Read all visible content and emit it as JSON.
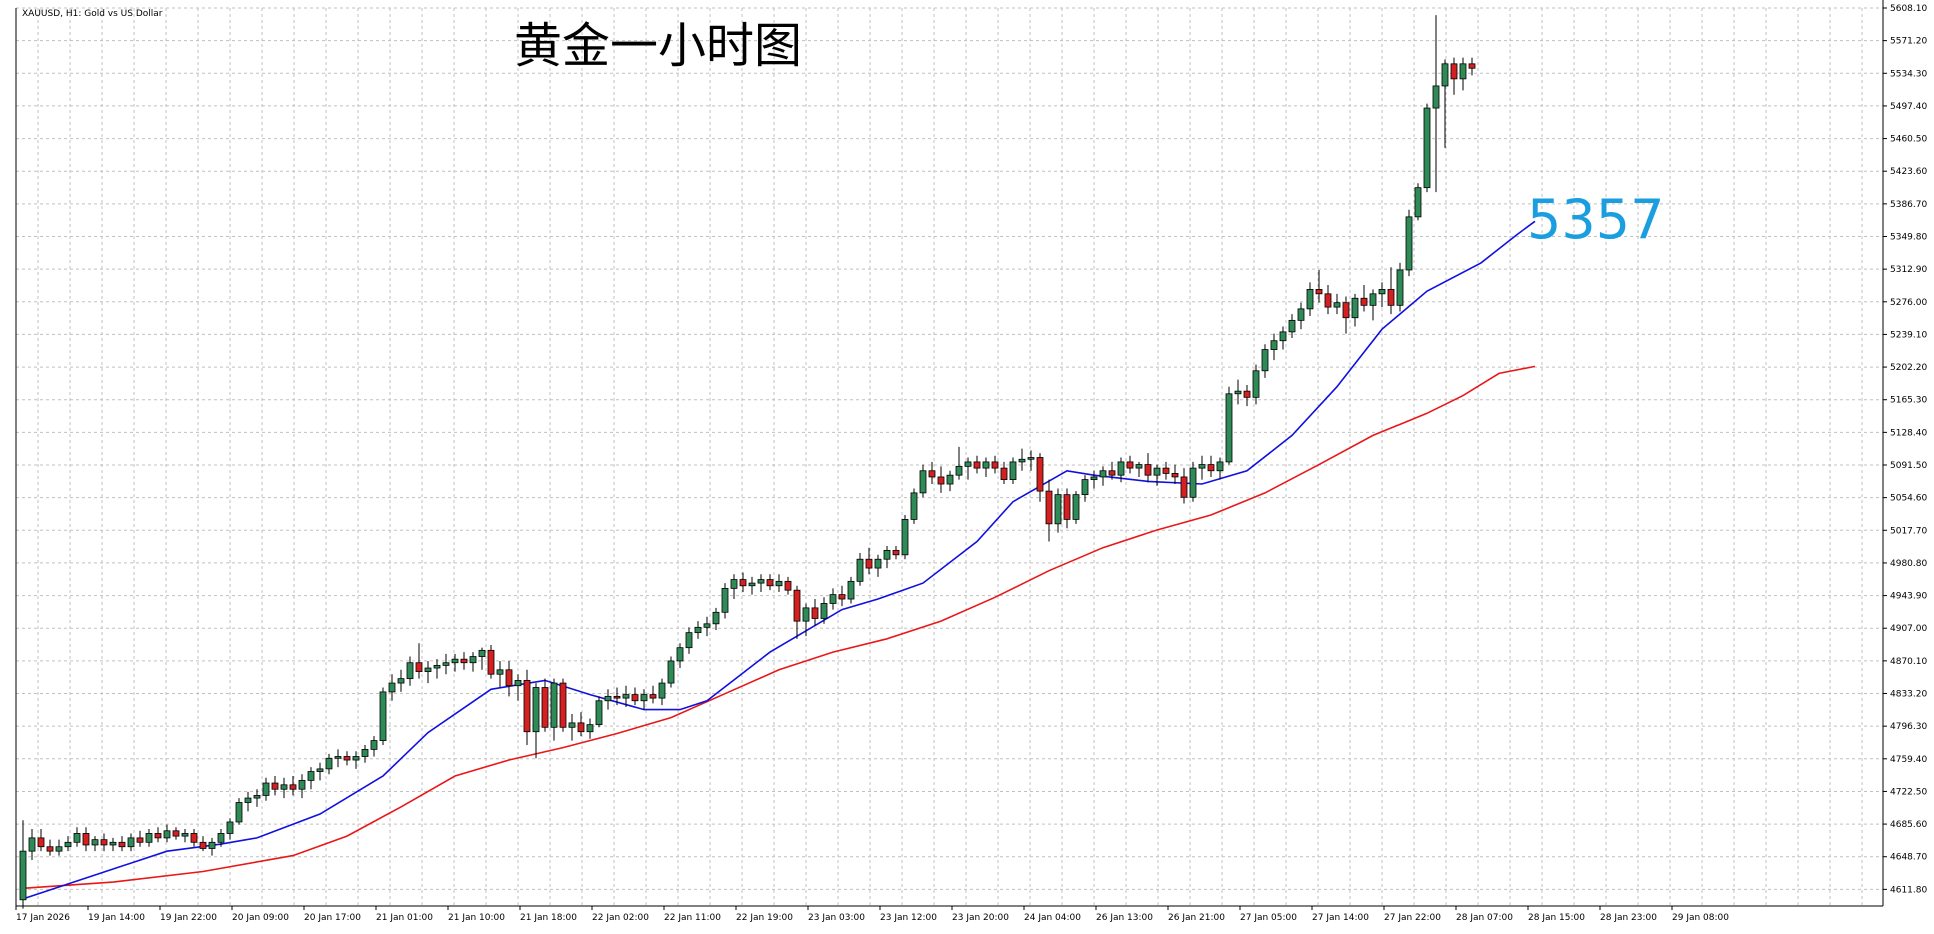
{
  "header": {
    "symbol_info": "XAUUSD, H1:  Gold vs US Dollar"
  },
  "chart_data": {
    "type": "candlestick",
    "title": "黄金一小时图",
    "annotation": {
      "text": "5357",
      "color": "#1a9ee0"
    },
    "colors": {
      "bull_body": "#2e8b57",
      "bear_body": "#d42020",
      "wick": "#000000",
      "ma_fast": "#1010e0",
      "ma_slow": "#e81818",
      "grid": "#c0c0c0",
      "axis": "#000000"
    },
    "ylim": [
      4593.0,
      5608.1
    ],
    "y_ticks": [
      "5608.10",
      "5571.20",
      "5534.30",
      "5497.40",
      "5460.50",
      "5423.60",
      "5386.70",
      "5349.80",
      "5312.90",
      "5276.00",
      "5239.10",
      "5202.20",
      "5165.30",
      "5128.40",
      "5091.50",
      "5054.60",
      "5017.70",
      "4980.80",
      "4943.90",
      "4907.00",
      "4870.10",
      "4833.20",
      "4796.30",
      "4759.40",
      "4722.50",
      "4685.60",
      "4648.70",
      "4611.80"
    ],
    "x_labels": [
      "17 Jan 2026",
      "19 Jan 14:00",
      "19 Jan 22:00",
      "20 Jan 09:00",
      "20 Jan 17:00",
      "21 Jan 01:00",
      "21 Jan 10:00",
      "21 Jan 18:00",
      "22 Jan 02:00",
      "22 Jan 11:00",
      "22 Jan 19:00",
      "23 Jan 03:00",
      "23 Jan 12:00",
      "23 Jan 20:00",
      "24 Jan 04:00",
      "26 Jan 13:00",
      "26 Jan 21:00",
      "27 Jan 05:00",
      "27 Jan 14:00",
      "27 Jan 22:00",
      "28 Jan 07:00",
      "28 Jan 15:00",
      "28 Jan 23:00",
      "29 Jan 08:00"
    ],
    "x_label_index_step": 8,
    "grid": true,
    "series": [
      {
        "name": "",
        "kind": "ma_fast"
      },
      {
        "name": "",
        "kind": "ma_slow"
      }
    ],
    "candles": [
      [
        4600,
        4690,
        4590,
        4655
      ],
      [
        4655,
        4680,
        4645,
        4670
      ],
      [
        4670,
        4680,
        4655,
        4660
      ],
      [
        4660,
        4668,
        4650,
        4655
      ],
      [
        4655,
        4668,
        4650,
        4660
      ],
      [
        4660,
        4672,
        4655,
        4665
      ],
      [
        4665,
        4682,
        4660,
        4675
      ],
      [
        4675,
        4682,
        4655,
        4662
      ],
      [
        4662,
        4672,
        4655,
        4668
      ],
      [
        4668,
        4675,
        4655,
        4662
      ],
      [
        4662,
        4670,
        4655,
        4665
      ],
      [
        4665,
        4672,
        4655,
        4660
      ],
      [
        4660,
        4675,
        4655,
        4670
      ],
      [
        4670,
        4678,
        4660,
        4665
      ],
      [
        4665,
        4680,
        4660,
        4675
      ],
      [
        4675,
        4682,
        4665,
        4670
      ],
      [
        4670,
        4685,
        4665,
        4678
      ],
      [
        4678,
        4682,
        4668,
        4672
      ],
      [
        4672,
        4680,
        4665,
        4675
      ],
      [
        4675,
        4680,
        4660,
        4665
      ],
      [
        4665,
        4672,
        4655,
        4658
      ],
      [
        4658,
        4670,
        4650,
        4665
      ],
      [
        4665,
        4680,
        4660,
        4675
      ],
      [
        4675,
        4692,
        4668,
        4688
      ],
      [
        4688,
        4715,
        4685,
        4710
      ],
      [
        4710,
        4722,
        4700,
        4715
      ],
      [
        4715,
        4725,
        4705,
        4718
      ],
      [
        4718,
        4738,
        4712,
        4732
      ],
      [
        4732,
        4740,
        4718,
        4725
      ],
      [
        4725,
        4738,
        4715,
        4730
      ],
      [
        4730,
        4740,
        4718,
        4725
      ],
      [
        4725,
        4742,
        4715,
        4735
      ],
      [
        4735,
        4750,
        4725,
        4745
      ],
      [
        4745,
        4755,
        4735,
        4748
      ],
      [
        4748,
        4765,
        4742,
        4760
      ],
      [
        4760,
        4770,
        4750,
        4762
      ],
      [
        4762,
        4768,
        4752,
        4758
      ],
      [
        4758,
        4768,
        4748,
        4762
      ],
      [
        4762,
        4775,
        4755,
        4770
      ],
      [
        4770,
        4785,
        4762,
        4780
      ],
      [
        4780,
        4840,
        4775,
        4835
      ],
      [
        4835,
        4855,
        4825,
        4845
      ],
      [
        4845,
        4860,
        4835,
        4850
      ],
      [
        4850,
        4875,
        4842,
        4868
      ],
      [
        4868,
        4890,
        4850,
        4858
      ],
      [
        4858,
        4870,
        4845,
        4862
      ],
      [
        4862,
        4872,
        4850,
        4865
      ],
      [
        4865,
        4878,
        4855,
        4868
      ],
      [
        4868,
        4878,
        4858,
        4872
      ],
      [
        4872,
        4880,
        4860,
        4868
      ],
      [
        4868,
        4880,
        4858,
        4875
      ],
      [
        4875,
        4885,
        4860,
        4882
      ],
      [
        4882,
        4888,
        4850,
        4855
      ],
      [
        4855,
        4870,
        4840,
        4860
      ],
      [
        4860,
        4870,
        4830,
        4842
      ],
      [
        4842,
        4855,
        4825,
        4848
      ],
      [
        4848,
        4860,
        4775,
        4790
      ],
      [
        4790,
        4845,
        4760,
        4840
      ],
      [
        4840,
        4850,
        4790,
        4795
      ],
      [
        4795,
        4850,
        4780,
        4845
      ],
      [
        4845,
        4850,
        4790,
        4795
      ],
      [
        4795,
        4810,
        4780,
        4800
      ],
      [
        4800,
        4812,
        4785,
        4790
      ],
      [
        4790,
        4805,
        4782,
        4798
      ],
      [
        4798,
        4830,
        4795,
        4825
      ],
      [
        4825,
        4838,
        4815,
        4830
      ],
      [
        4830,
        4840,
        4820,
        4828
      ],
      [
        4828,
        4842,
        4818,
        4832
      ],
      [
        4832,
        4840,
        4820,
        4825
      ],
      [
        4825,
        4838,
        4815,
        4832
      ],
      [
        4832,
        4842,
        4822,
        4828
      ],
      [
        4828,
        4850,
        4820,
        4845
      ],
      [
        4845,
        4875,
        4840,
        4870
      ],
      [
        4870,
        4890,
        4862,
        4885
      ],
      [
        4885,
        4908,
        4878,
        4902
      ],
      [
        4902,
        4915,
        4895,
        4908
      ],
      [
        4908,
        4920,
        4898,
        4912
      ],
      [
        4912,
        4930,
        4905,
        4925
      ],
      [
        4925,
        4958,
        4918,
        4952
      ],
      [
        4952,
        4968,
        4940,
        4962
      ],
      [
        4962,
        4970,
        4948,
        4955
      ],
      [
        4955,
        4965,
        4945,
        4958
      ],
      [
        4958,
        4968,
        4948,
        4962
      ],
      [
        4962,
        4968,
        4950,
        4955
      ],
      [
        4955,
        4968,
        4948,
        4960
      ],
      [
        4960,
        4965,
        4945,
        4950
      ],
      [
        4950,
        4955,
        4895,
        4915
      ],
      [
        4915,
        4935,
        4898,
        4930
      ],
      [
        4930,
        4940,
        4910,
        4918
      ],
      [
        4918,
        4942,
        4912,
        4935
      ],
      [
        4935,
        4952,
        4928,
        4945
      ],
      [
        4945,
        4955,
        4932,
        4940
      ],
      [
        4940,
        4965,
        4935,
        4960
      ],
      [
        4960,
        4992,
        4955,
        4985
      ],
      [
        4985,
        4998,
        4968,
        4975
      ],
      [
        4975,
        4990,
        4965,
        4985
      ],
      [
        4985,
        5000,
        4975,
        4995
      ],
      [
        4995,
        5000,
        4985,
        4990
      ],
      [
        4990,
        5035,
        4985,
        5030
      ],
      [
        5030,
        5065,
        5025,
        5060
      ],
      [
        5060,
        5092,
        5055,
        5085
      ],
      [
        5085,
        5095,
        5070,
        5078
      ],
      [
        5078,
        5090,
        5060,
        5070
      ],
      [
        5070,
        5085,
        5062,
        5080
      ],
      [
        5080,
        5112,
        5075,
        5090
      ],
      [
        5090,
        5100,
        5075,
        5095
      ],
      [
        5095,
        5102,
        5082,
        5088
      ],
      [
        5088,
        5100,
        5078,
        5095
      ],
      [
        5095,
        5102,
        5082,
        5088
      ],
      [
        5088,
        5095,
        5070,
        5075
      ],
      [
        5075,
        5100,
        5070,
        5095
      ],
      [
        5095,
        5110,
        5085,
        5098
      ],
      [
        5098,
        5108,
        5085,
        5100
      ],
      [
        5100,
        5105,
        5050,
        5062
      ],
      [
        5062,
        5075,
        5005,
        5025
      ],
      [
        5025,
        5065,
        5015,
        5058
      ],
      [
        5058,
        5065,
        5020,
        5030
      ],
      [
        5030,
        5062,
        5025,
        5058
      ],
      [
        5058,
        5080,
        5050,
        5075
      ],
      [
        5075,
        5085,
        5065,
        5078
      ],
      [
        5078,
        5090,
        5068,
        5085
      ],
      [
        5085,
        5095,
        5075,
        5080
      ],
      [
        5080,
        5100,
        5072,
        5095
      ],
      [
        5095,
        5102,
        5082,
        5088
      ],
      [
        5088,
        5095,
        5078,
        5092
      ],
      [
        5092,
        5105,
        5072,
        5080
      ],
      [
        5080,
        5092,
        5068,
        5088
      ],
      [
        5088,
        5095,
        5075,
        5082
      ],
      [
        5082,
        5092,
        5070,
        5078
      ],
      [
        5078,
        5088,
        5048,
        5055
      ],
      [
        5055,
        5095,
        5050,
        5088
      ],
      [
        5088,
        5102,
        5075,
        5092
      ],
      [
        5092,
        5102,
        5078,
        5085
      ],
      [
        5085,
        5100,
        5075,
        5095
      ],
      [
        5095,
        5180,
        5092,
        5172
      ],
      [
        5172,
        5188,
        5160,
        5175
      ],
      [
        5175,
        5182,
        5158,
        5168
      ],
      [
        5168,
        5205,
        5160,
        5198
      ],
      [
        5198,
        5228,
        5190,
        5222
      ],
      [
        5222,
        5240,
        5210,
        5232
      ],
      [
        5232,
        5248,
        5222,
        5242
      ],
      [
        5242,
        5262,
        5235,
        5255
      ],
      [
        5255,
        5275,
        5245,
        5268
      ],
      [
        5268,
        5298,
        5260,
        5290
      ],
      [
        5290,
        5312,
        5275,
        5285
      ],
      [
        5285,
        5295,
        5262,
        5270
      ],
      [
        5270,
        5285,
        5262,
        5275
      ],
      [
        5275,
        5282,
        5240,
        5258
      ],
      [
        5258,
        5285,
        5248,
        5280
      ],
      [
        5280,
        5295,
        5265,
        5272
      ],
      [
        5272,
        5290,
        5255,
        5285
      ],
      [
        5285,
        5298,
        5270,
        5290
      ],
      [
        5290,
        5315,
        5262,
        5272
      ],
      [
        5272,
        5320,
        5265,
        5312
      ],
      [
        5312,
        5380,
        5305,
        5372
      ],
      [
        5372,
        5410,
        5368,
        5405
      ],
      [
        5405,
        5500,
        5400,
        5495
      ],
      [
        5495,
        5600,
        5400,
        5520
      ],
      [
        5520,
        5550,
        5450,
        5545
      ],
      [
        5545,
        5552,
        5510,
        5528
      ],
      [
        5528,
        5552,
        5515,
        5545
      ],
      [
        5545,
        5552,
        5532,
        5540
      ]
    ],
    "ma_fast": [
      [
        0,
        4601
      ],
      [
        8,
        4628
      ],
      [
        16,
        4655
      ],
      [
        22,
        4663
      ],
      [
        26,
        4670
      ],
      [
        33,
        4697
      ],
      [
        40,
        4740
      ],
      [
        45,
        4789
      ],
      [
        52,
        4838
      ],
      [
        58,
        4848
      ],
      [
        63,
        4832
      ],
      [
        69,
        4815
      ],
      [
        73,
        4815
      ],
      [
        76,
        4825
      ],
      [
        83,
        4880
      ],
      [
        91,
        4928
      ],
      [
        95,
        4940
      ],
      [
        100,
        4958
      ],
      [
        106,
        5005
      ],
      [
        110,
        5050
      ],
      [
        116,
        5085
      ],
      [
        119,
        5080
      ],
      [
        125,
        5073
      ],
      [
        131,
        5070
      ],
      [
        136,
        5085
      ],
      [
        141,
        5125
      ],
      [
        146,
        5180
      ],
      [
        151,
        5245
      ],
      [
        156,
        5288
      ],
      [
        162,
        5320
      ],
      [
        166,
        5352
      ],
      [
        168,
        5367
      ]
    ],
    "ma_slow": [
      [
        0,
        4613
      ],
      [
        10,
        4620
      ],
      [
        20,
        4632
      ],
      [
        30,
        4650
      ],
      [
        36,
        4672
      ],
      [
        42,
        4705
      ],
      [
        48,
        4740
      ],
      [
        54,
        4758
      ],
      [
        60,
        4772
      ],
      [
        66,
        4788
      ],
      [
        72,
        4806
      ],
      [
        78,
        4833
      ],
      [
        84,
        4860
      ],
      [
        90,
        4880
      ],
      [
        96,
        4895
      ],
      [
        102,
        4915
      ],
      [
        108,
        4942
      ],
      [
        114,
        4972
      ],
      [
        120,
        4998
      ],
      [
        126,
        5018
      ],
      [
        132,
        5035
      ],
      [
        138,
        5060
      ],
      [
        144,
        5092
      ],
      [
        150,
        5125
      ],
      [
        156,
        5150
      ],
      [
        160,
        5170
      ],
      [
        164,
        5195
      ],
      [
        168,
        5203
      ]
    ]
  }
}
